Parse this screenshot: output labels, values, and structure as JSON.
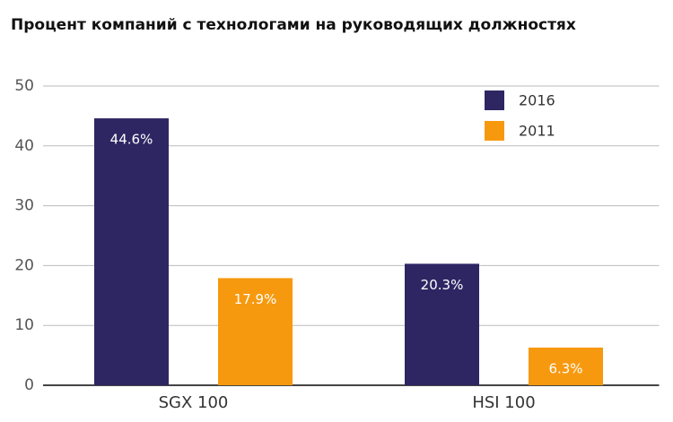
{
  "chart_data": {
    "type": "bar",
    "title": "Процент компаний с технологами на руководящих должностях",
    "categories": [
      "SGX 100",
      "HSI 100"
    ],
    "series": [
      {
        "name": "2016",
        "color": "#2e2663",
        "values": [
          44.6,
          20.3
        ],
        "value_labels": [
          "44.6%",
          "20.3%"
        ]
      },
      {
        "name": "2011",
        "color": "#f7990f",
        "values": [
          17.9,
          6.3
        ],
        "value_labels": [
          "17.9%",
          "6.3%"
        ]
      }
    ],
    "ylim": [
      0,
      50
    ],
    "yticks": [
      0,
      10,
      20,
      30,
      40,
      50
    ],
    "grid": true,
    "legend": "top-right"
  }
}
